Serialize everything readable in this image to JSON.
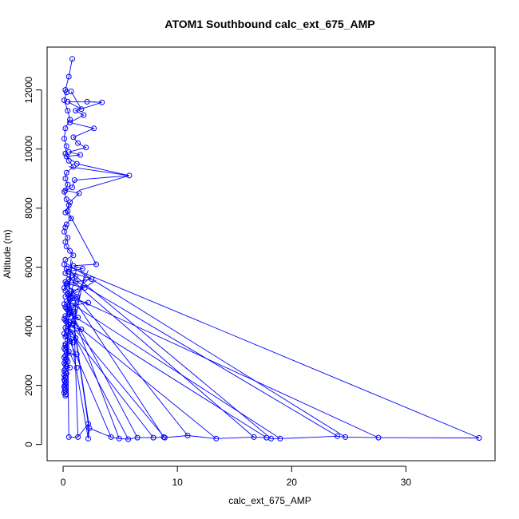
{
  "chart_data": {
    "type": "line",
    "title": "ATOM1 Southbound calc_ext_675_AMP",
    "xlabel": "calc_ext_675_AMP",
    "ylabel": "Altitude (m)",
    "xlim": [
      -1.4,
      37.8
    ],
    "ylim": [
      -550,
      13450
    ],
    "x_ticks": [
      0,
      10,
      20,
      30
    ],
    "y_ticks": [
      0,
      2000,
      4000,
      6000,
      8000,
      10000,
      12000
    ],
    "x_tick_labels": [
      "0",
      "10",
      "20",
      "30"
    ],
    "y_tick_labels": [
      "0",
      "2000",
      "4000",
      "6000",
      "8000",
      "10000",
      "12000"
    ],
    "grid": false,
    "legend": "none",
    "series": [
      {
        "color": "#0000ff",
        "marker": "open-circle",
        "x": [
          0.8,
          0.5,
          0.2,
          0.3,
          0.1,
          0.4,
          0.6,
          0.2,
          0.1,
          0.3,
          0.2,
          0.5,
          0.9,
          0.3,
          0.2,
          0.4,
          0.1,
          0.3,
          0.5,
          0.2,
          0.7,
          0.3,
          0.2,
          0.1,
          0.4,
          0.2,
          0.3,
          0.6,
          0.9,
          0.2,
          0.1,
          0.3,
          0.2,
          1.1,
          0.5,
          0.2,
          0.3,
          0.1,
          0.2,
          0.4,
          0.2,
          0.8,
          0.3,
          0.1,
          0.2,
          0.4,
          0.6,
          0.2,
          0.1,
          0.3,
          0.5,
          0.2,
          0.3,
          0.1,
          0.2,
          0.4,
          0.9,
          0.2,
          0.3,
          0.1,
          0.2,
          0.5,
          0.3,
          1.2,
          0.2,
          0.1,
          0.3,
          0.2,
          0.4,
          0.1,
          0.2,
          0.3,
          0.6,
          0.2,
          0.1,
          0.2,
          0.3,
          0.1,
          0.2,
          0.2,
          0.1,
          0.15,
          0.25,
          0.2,
          0.15,
          0.1,
          0.2,
          0.15,
          0.2,
          0.1,
          0.25,
          0.2
        ],
        "y": [
          13050,
          12450,
          12000,
          11920,
          11650,
          11300,
          11000,
          10700,
          10350,
          10100,
          9850,
          9600,
          9400,
          9200,
          9000,
          8800,
          8550,
          8300,
          8100,
          7850,
          7650,
          7450,
          7350,
          7200,
          7000,
          6850,
          6700,
          6550,
          6400,
          6250,
          6100,
          5950,
          5800,
          5700,
          5600,
          5500,
          5400,
          5300,
          5200,
          5100,
          5000,
          4950,
          4850,
          4750,
          4650,
          4550,
          4450,
          4350,
          4250,
          4150,
          4050,
          3950,
          3850,
          3750,
          3650,
          3550,
          3450,
          3350,
          3300,
          3250,
          3200,
          3150,
          3100,
          3050,
          3000,
          2950,
          2900,
          2850,
          2800,
          2750,
          2700,
          2650,
          2600,
          2550,
          2500,
          2450,
          2400,
          2350,
          2300,
          2250,
          2200,
          2150,
          2100,
          2050,
          2000,
          1950,
          1900,
          1850,
          1800,
          1750,
          1700,
          1650
        ]
      },
      {
        "color": "#0000ff",
        "marker": "open-circle",
        "x": [
          0.7,
          1.6,
          0.4,
          2.1,
          3.4,
          1.1,
          1.8,
          0.6,
          2.7,
          0.9,
          1.3,
          2.0,
          0.5,
          1.5,
          0.3,
          1.2,
          5.8,
          1.0,
          0.8,
          0.2,
          1.4,
          0.6,
          0.4,
          2.9,
          0.9,
          1.7,
          0.5,
          2.5,
          1.1,
          0.3,
          1.9,
          0.7,
          0.4,
          1.2,
          0.6,
          2.2,
          0.8,
          0.3,
          1.0,
          0.5,
          1.3,
          0.2,
          0.9,
          0.4,
          1.6,
          0.7,
          0.3,
          1.1,
          0.6,
          0.2,
          1.2
        ],
        "y": [
          11950,
          11350,
          11600,
          11600,
          11580,
          11300,
          11150,
          10900,
          10700,
          10400,
          10200,
          10050,
          9900,
          9800,
          9750,
          9500,
          9100,
          8950,
          8700,
          8600,
          8500,
          8200,
          7900,
          6100,
          6050,
          5950,
          5850,
          5600,
          5500,
          5450,
          5300,
          5200,
          5100,
          5000,
          4900,
          4800,
          4700,
          4600,
          4500,
          4400,
          4300,
          4200,
          4100,
          4000,
          3900,
          3800,
          3700,
          3600,
          3500,
          3400,
          2600
        ]
      },
      {
        "color": "#0000ff",
        "marker": "open-circle",
        "x": [
          0.5,
          1.3,
          2.2,
          2.2,
          2.3,
          4.2,
          4.9,
          5.7,
          6.5,
          7.9,
          8.8,
          8.9,
          10.9,
          13.4,
          16.7,
          17.8,
          18.2,
          19.0,
          24.0,
          24.7,
          27.6,
          36.4
        ],
        "y": [
          250,
          250,
          700,
          200,
          550,
          250,
          200,
          180,
          230,
          230,
          250,
          230,
          300,
          200,
          250,
          230,
          200,
          200,
          280,
          250,
          230,
          220
        ]
      },
      {
        "color": "#0000ff",
        "marker": "none",
        "connections": [
          [
            [
              0.3,
              6050
            ],
            [
              36.4,
              220
            ]
          ],
          [
            [
              0.5,
              5050
            ],
            [
              27.6,
              230
            ]
          ],
          [
            [
              0.2,
              6150
            ],
            [
              24.7,
              250
            ]
          ],
          [
            [
              0.6,
              5650
            ],
            [
              24.0,
              280
            ]
          ],
          [
            [
              0.4,
              4850
            ],
            [
              19.0,
              200
            ]
          ],
          [
            [
              0.3,
              5950
            ],
            [
              18.2,
              200
            ]
          ],
          [
            [
              0.9,
              4350
            ],
            [
              17.8,
              230
            ]
          ],
          [
            [
              0.2,
              5750
            ],
            [
              16.7,
              250
            ]
          ],
          [
            [
              0.5,
              4250
            ],
            [
              13.4,
              200
            ]
          ],
          [
            [
              0.3,
              5450
            ],
            [
              10.9,
              300
            ]
          ],
          [
            [
              0.7,
              4050
            ],
            [
              8.9,
              230
            ]
          ],
          [
            [
              0.2,
              5350
            ],
            [
              8.8,
              250
            ]
          ],
          [
            [
              0.4,
              3950
            ],
            [
              7.9,
              230
            ]
          ],
          [
            [
              0.6,
              4550
            ],
            [
              6.5,
              230
            ]
          ],
          [
            [
              0.3,
              4150
            ],
            [
              5.7,
              180
            ]
          ],
          [
            [
              0.5,
              4750
            ],
            [
              4.9,
              200
            ]
          ],
          [
            [
              0.2,
              3850
            ],
            [
              4.2,
              250
            ]
          ],
          [
            [
              0.8,
              4450
            ],
            [
              2.3,
              550
            ]
          ],
          [
            [
              0.4,
              4250
            ],
            [
              2.2,
              200
            ]
          ],
          [
            [
              0.6,
              4950
            ],
            [
              2.2,
              700
            ]
          ],
          [
            [
              1.0,
              3700
            ],
            [
              1.3,
              250
            ]
          ],
          [
            [
              0.4,
              3550
            ],
            [
              0.5,
              250
            ]
          ],
          [
            [
              2.9,
              5550
            ],
            [
              0.3,
              4950
            ]
          ],
          [
            [
              2.5,
              5700
            ],
            [
              0.5,
              5000
            ]
          ],
          [
            [
              2.2,
              5900
            ],
            [
              0.4,
              4200
            ]
          ],
          [
            [
              1.9,
              5800
            ],
            [
              0.9,
              3950
            ]
          ],
          [
            [
              0.5,
              9400
            ],
            [
              5.8,
              9100
            ]
          ],
          [
            [
              5.8,
              9100
            ],
            [
              1.4,
              8600
            ]
          ],
          [
            [
              3.4,
              11580
            ],
            [
              2.1,
              11600
            ]
          ],
          [
            [
              1.2,
              6000
            ],
            [
              0.3,
              4350
            ]
          ],
          [
            [
              0.8,
              6200
            ],
            [
              0.2,
              4050
            ]
          ],
          [
            [
              1.5,
              5100
            ],
            [
              0.4,
              3800
            ]
          ],
          [
            [
              0.9,
              5250
            ],
            [
              0.2,
              4550
            ]
          ],
          [
            [
              1.3,
              4650
            ],
            [
              0.3,
              3650
            ]
          ],
          [
            [
              0.6,
              4800
            ],
            [
              0.2,
              2600
            ]
          ],
          [
            [
              1.1,
              4900
            ],
            [
              1.0,
              3400
            ]
          ],
          [
            [
              0.7,
              6300
            ],
            [
              0.4,
              4700
            ]
          ]
        ]
      }
    ]
  }
}
